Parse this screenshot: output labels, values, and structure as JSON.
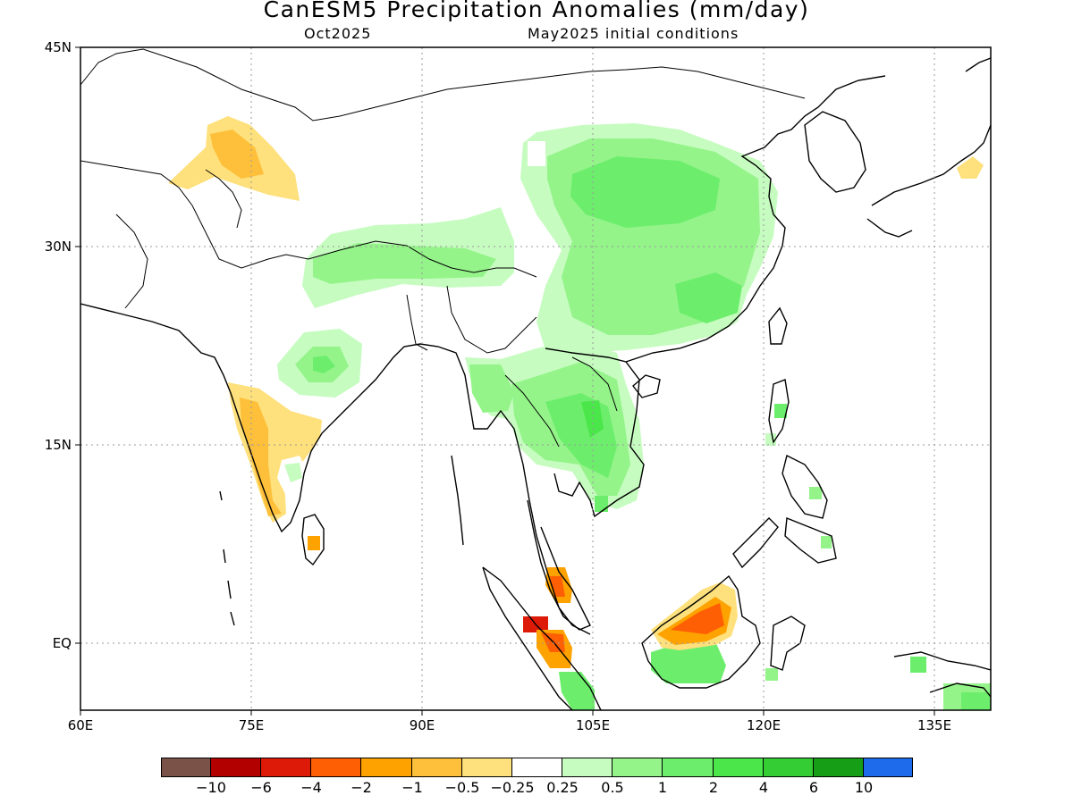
{
  "title": "CanESM5 Precipitation Anomalies (mm/day)",
  "subtitle_left": "Oct2025",
  "subtitle_right": "May2025 initial conditions",
  "map": {
    "lon_range": [
      60,
      140
    ],
    "lat_range": [
      -5,
      45
    ],
    "lat_ticks": [
      {
        "value": 45,
        "label": "45N"
      },
      {
        "value": 30,
        "label": "30N"
      },
      {
        "value": 15,
        "label": "15N"
      },
      {
        "value": 0,
        "label": "EQ"
      }
    ],
    "lon_ticks": [
      {
        "value": 60,
        "label": "60E"
      },
      {
        "value": 75,
        "label": "75E"
      },
      {
        "value": 90,
        "label": "90E"
      },
      {
        "value": 105,
        "label": "105E"
      },
      {
        "value": 120,
        "label": "120E"
      },
      {
        "value": 135,
        "label": "135E"
      }
    ],
    "gridlines": "dotted"
  },
  "colorbar": {
    "colors": [
      "#7a5248",
      "#b20000",
      "#dd1a08",
      "#fe5e04",
      "#fea200",
      "#fec03a",
      "#fee07c",
      "#ffffff",
      "#c6fcc0",
      "#94f48a",
      "#6cee6c",
      "#4ae64a",
      "#34ce34",
      "#169e16",
      "#1e6cec"
    ],
    "labels": [
      "−10",
      "−6",
      "−4",
      "−2",
      "−1",
      "−0.5",
      "−0.25",
      "0.25",
      "0.5",
      "1",
      "2",
      "4",
      "6",
      "10"
    ]
  }
}
